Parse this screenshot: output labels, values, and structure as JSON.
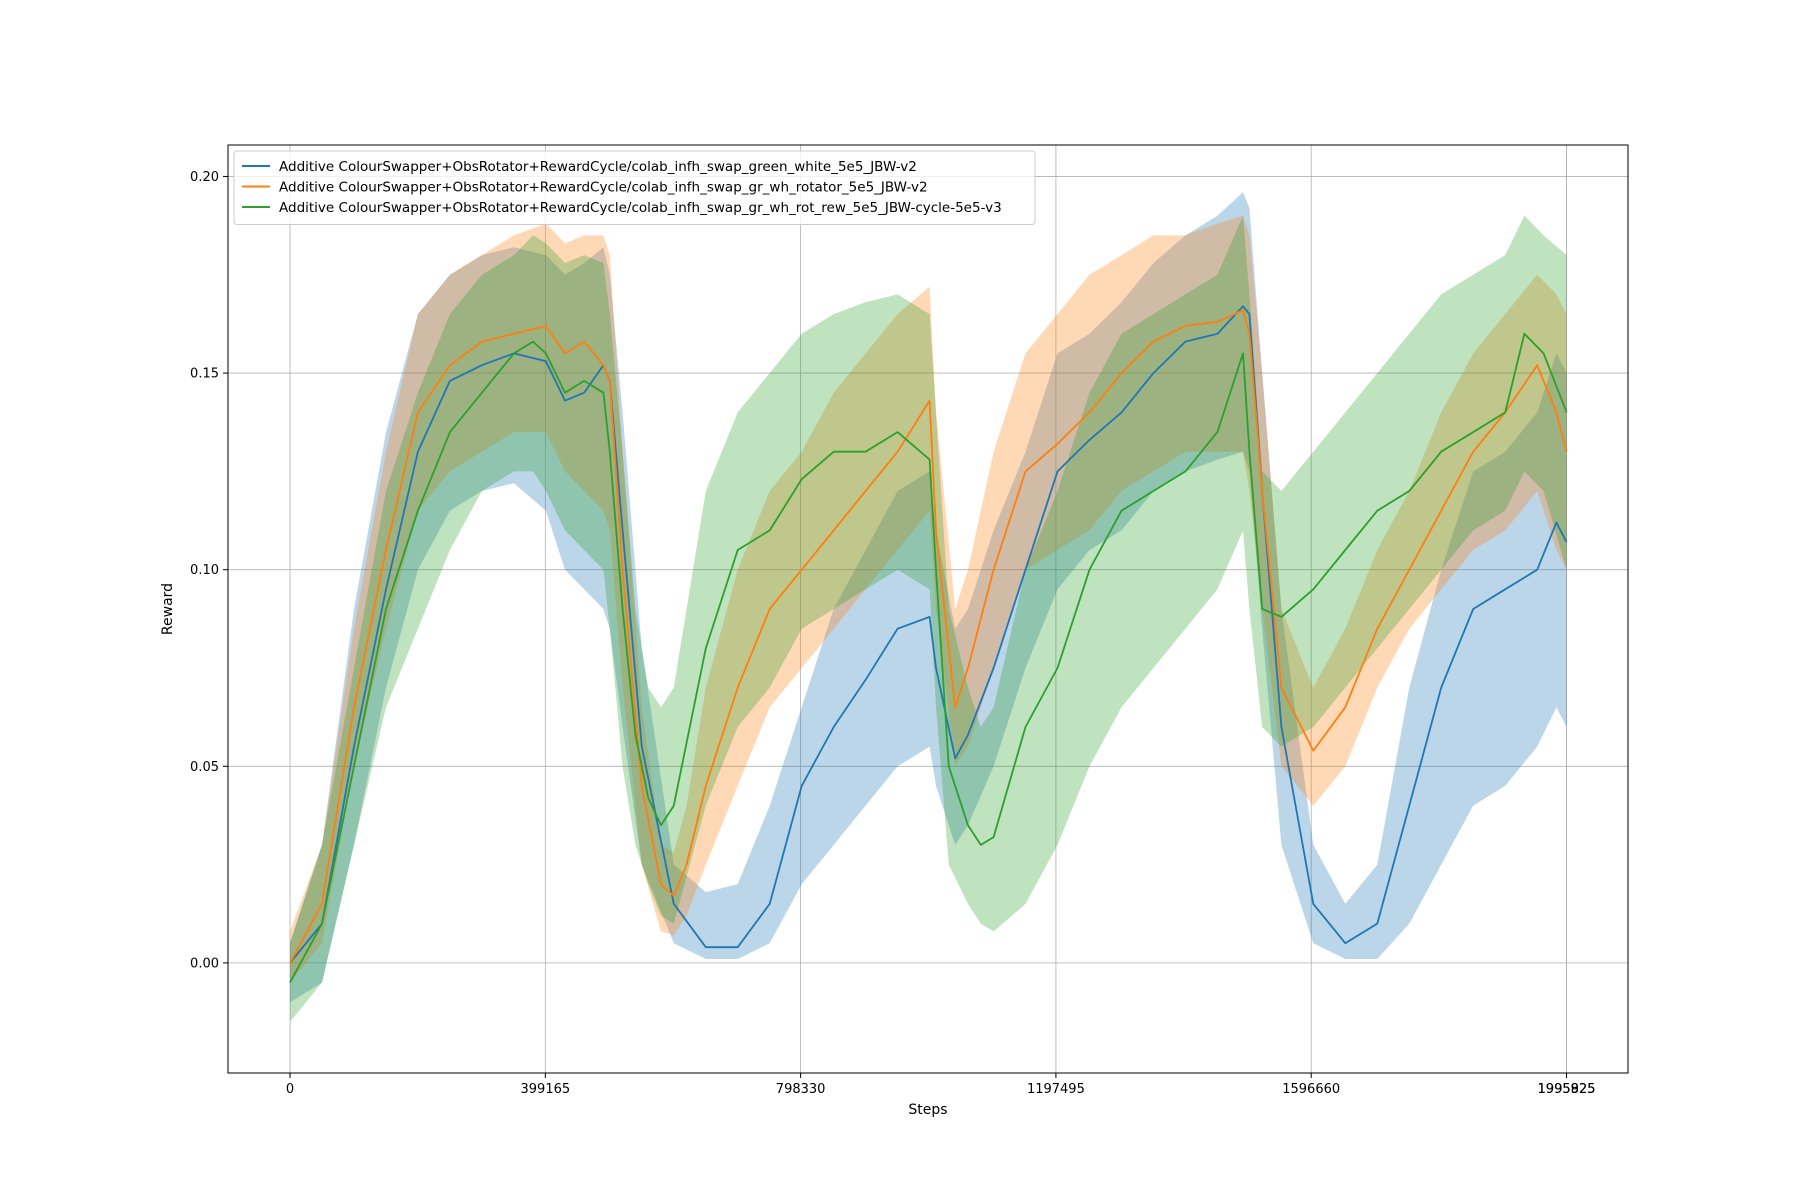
{
  "chart_data": {
    "type": "line",
    "xlabel": "Steps",
    "ylabel": "Reward",
    "grid": true,
    "legend_position": "top-left",
    "xlim": [
      -97000,
      2092000
    ],
    "ylim": [
      -0.028,
      0.208
    ],
    "x_ticks": [
      0,
      399165,
      798330,
      1197495,
      1596660,
      1995825,
      1995925
    ],
    "x_tick_labels": [
      "0",
      "399165",
      "798330",
      "1197495",
      "1596660",
      "1995825",
      "1995925"
    ],
    "y_ticks": [
      0.0,
      0.05,
      0.1,
      0.15,
      0.2
    ],
    "y_tick_labels": [
      "0.00",
      "0.05",
      "0.10",
      "0.15",
      "0.20"
    ],
    "series": [
      {
        "name": "Additive ColourSwapper+ObsRotator+RewardCycle/colab_infh_swap_green_white_5e5_JBW-v2",
        "color": "#1f77b4",
        "x": [
          0,
          50000,
          100000,
          150000,
          200000,
          250000,
          300000,
          350000,
          400000,
          430000,
          460000,
          490000,
          500000,
          520000,
          550000,
          600000,
          650000,
          700000,
          750000,
          800000,
          850000,
          900000,
          950000,
          1000000,
          1010000,
          1040000,
          1060000,
          1100000,
          1150000,
          1200000,
          1250000,
          1300000,
          1350000,
          1400000,
          1450000,
          1490000,
          1500000,
          1520000,
          1550000,
          1600000,
          1650000,
          1700000,
          1750000,
          1800000,
          1850000,
          1900000,
          1950000,
          1980000,
          1996000
        ],
        "mean": [
          0.0,
          0.01,
          0.055,
          0.095,
          0.13,
          0.148,
          0.152,
          0.155,
          0.153,
          0.143,
          0.145,
          0.152,
          0.148,
          0.11,
          0.055,
          0.015,
          0.004,
          0.004,
          0.015,
          0.045,
          0.06,
          0.072,
          0.085,
          0.088,
          0.075,
          0.052,
          0.058,
          0.075,
          0.1,
          0.125,
          0.133,
          0.14,
          0.15,
          0.158,
          0.16,
          0.167,
          0.165,
          0.12,
          0.06,
          0.015,
          0.005,
          0.01,
          0.04,
          0.07,
          0.09,
          0.095,
          0.1,
          0.112,
          0.107
        ],
        "lower": [
          -0.01,
          -0.005,
          0.03,
          0.07,
          0.1,
          0.115,
          0.12,
          0.122,
          0.115,
          0.1,
          0.095,
          0.09,
          0.085,
          0.06,
          0.025,
          0.005,
          0.001,
          0.001,
          0.005,
          0.02,
          0.03,
          0.04,
          0.05,
          0.055,
          0.045,
          0.03,
          0.035,
          0.05,
          0.075,
          0.095,
          0.105,
          0.11,
          0.12,
          0.125,
          0.128,
          0.13,
          0.125,
          0.085,
          0.03,
          0.005,
          0.001,
          0.001,
          0.01,
          0.025,
          0.04,
          0.045,
          0.055,
          0.065,
          0.06
        ],
        "upper": [
          0.005,
          0.03,
          0.09,
          0.135,
          0.165,
          0.175,
          0.18,
          0.182,
          0.18,
          0.175,
          0.178,
          0.182,
          0.175,
          0.14,
          0.08,
          0.025,
          0.018,
          0.02,
          0.04,
          0.065,
          0.09,
          0.105,
          0.12,
          0.125,
          0.11,
          0.085,
          0.09,
          0.11,
          0.13,
          0.155,
          0.16,
          0.168,
          0.178,
          0.185,
          0.19,
          0.196,
          0.192,
          0.15,
          0.09,
          0.03,
          0.015,
          0.025,
          0.07,
          0.1,
          0.125,
          0.13,
          0.14,
          0.155,
          0.15
        ]
      },
      {
        "name": "Additive ColourSwapper+ObsRotator+RewardCycle/colab_infh_swap_gr_wh_rotator_5e5_JBW-v2",
        "color": "#ff7f0e",
        "x": [
          0,
          50000,
          100000,
          150000,
          200000,
          250000,
          300000,
          350000,
          400000,
          430000,
          460000,
          490000,
          500000,
          520000,
          550000,
          580000,
          600000,
          620000,
          650000,
          700000,
          750000,
          800000,
          850000,
          900000,
          950000,
          1000000,
          1010000,
          1040000,
          1060000,
          1100000,
          1150000,
          1200000,
          1250000,
          1300000,
          1350000,
          1400000,
          1450000,
          1490000,
          1500000,
          1520000,
          1550000,
          1600000,
          1650000,
          1700000,
          1750000,
          1800000,
          1850000,
          1900000,
          1950000,
          1980000,
          1996000
        ],
        "mean": [
          0.0,
          0.015,
          0.065,
          0.105,
          0.14,
          0.152,
          0.158,
          0.16,
          0.162,
          0.155,
          0.158,
          0.152,
          0.148,
          0.1,
          0.045,
          0.02,
          0.017,
          0.025,
          0.045,
          0.07,
          0.09,
          0.1,
          0.11,
          0.12,
          0.13,
          0.143,
          0.11,
          0.065,
          0.075,
          0.1,
          0.125,
          0.132,
          0.14,
          0.15,
          0.158,
          0.162,
          0.163,
          0.166,
          0.16,
          0.12,
          0.07,
          0.054,
          0.065,
          0.085,
          0.1,
          0.115,
          0.13,
          0.14,
          0.152,
          0.14,
          0.13
        ],
        "lower": [
          -0.005,
          0.005,
          0.05,
          0.085,
          0.115,
          0.125,
          0.13,
          0.135,
          0.135,
          0.125,
          0.12,
          0.115,
          0.11,
          0.07,
          0.025,
          0.008,
          0.007,
          0.012,
          0.025,
          0.045,
          0.065,
          0.075,
          0.085,
          0.095,
          0.105,
          0.115,
          0.09,
          0.05,
          0.055,
          0.075,
          0.1,
          0.105,
          0.11,
          0.12,
          0.125,
          0.13,
          0.13,
          0.13,
          0.12,
          0.09,
          0.05,
          0.04,
          0.05,
          0.07,
          0.085,
          0.095,
          0.105,
          0.11,
          0.12,
          0.105,
          0.1
        ],
        "upper": [
          0.008,
          0.03,
          0.085,
          0.13,
          0.165,
          0.175,
          0.18,
          0.185,
          0.188,
          0.183,
          0.185,
          0.185,
          0.18,
          0.13,
          0.065,
          0.03,
          0.028,
          0.04,
          0.07,
          0.1,
          0.12,
          0.13,
          0.145,
          0.155,
          0.165,
          0.172,
          0.14,
          0.09,
          0.1,
          0.13,
          0.155,
          0.165,
          0.175,
          0.18,
          0.185,
          0.185,
          0.188,
          0.19,
          0.185,
          0.15,
          0.09,
          0.07,
          0.085,
          0.105,
          0.12,
          0.14,
          0.155,
          0.165,
          0.175,
          0.17,
          0.165
        ]
      },
      {
        "name": "Additive ColourSwapper+ObsRotator+RewardCycle/colab_infh_swap_gr_wh_rot_rew_5e5_JBW-cycle-5e5-v3",
        "color": "#2ca02c",
        "x": [
          0,
          50000,
          100000,
          150000,
          200000,
          250000,
          300000,
          350000,
          380000,
          400000,
          430000,
          460000,
          490000,
          500000,
          520000,
          540000,
          560000,
          580000,
          600000,
          650000,
          700000,
          750000,
          800000,
          850000,
          900000,
          950000,
          1000000,
          1010000,
          1030000,
          1060000,
          1080000,
          1100000,
          1150000,
          1200000,
          1250000,
          1300000,
          1350000,
          1400000,
          1450000,
          1490000,
          1500000,
          1520000,
          1550000,
          1600000,
          1650000,
          1700000,
          1750000,
          1800000,
          1850000,
          1900000,
          1930000,
          1960000,
          1996000
        ],
        "mean": [
          -0.005,
          0.01,
          0.05,
          0.09,
          0.115,
          0.135,
          0.145,
          0.155,
          0.158,
          0.155,
          0.145,
          0.148,
          0.145,
          0.13,
          0.09,
          0.058,
          0.042,
          0.035,
          0.04,
          0.08,
          0.105,
          0.11,
          0.123,
          0.13,
          0.13,
          0.135,
          0.128,
          0.1,
          0.05,
          0.035,
          0.03,
          0.032,
          0.06,
          0.075,
          0.1,
          0.115,
          0.12,
          0.125,
          0.135,
          0.155,
          0.13,
          0.09,
          0.088,
          0.095,
          0.105,
          0.115,
          0.12,
          0.13,
          0.135,
          0.14,
          0.16,
          0.155,
          0.14
        ],
        "lower": [
          -0.015,
          -0.005,
          0.03,
          0.065,
          0.085,
          0.105,
          0.12,
          0.125,
          0.125,
          0.12,
          0.11,
          0.105,
          0.1,
          0.085,
          0.05,
          0.03,
          0.02,
          0.012,
          0.01,
          0.04,
          0.06,
          0.07,
          0.085,
          0.09,
          0.095,
          0.1,
          0.095,
          0.065,
          0.025,
          0.015,
          0.01,
          0.008,
          0.015,
          0.03,
          0.05,
          0.065,
          0.075,
          0.085,
          0.095,
          0.11,
          0.09,
          0.06,
          0.055,
          0.06,
          0.07,
          0.08,
          0.09,
          0.1,
          0.11,
          0.115,
          0.125,
          0.12,
          0.1
        ],
        "upper": [
          0.005,
          0.03,
          0.075,
          0.12,
          0.145,
          0.165,
          0.175,
          0.18,
          0.185,
          0.183,
          0.178,
          0.18,
          0.178,
          0.165,
          0.13,
          0.09,
          0.07,
          0.065,
          0.07,
          0.12,
          0.14,
          0.15,
          0.16,
          0.165,
          0.168,
          0.17,
          0.165,
          0.14,
          0.09,
          0.07,
          0.06,
          0.065,
          0.1,
          0.12,
          0.145,
          0.16,
          0.165,
          0.17,
          0.175,
          0.19,
          0.17,
          0.125,
          0.12,
          0.13,
          0.14,
          0.15,
          0.16,
          0.17,
          0.175,
          0.18,
          0.19,
          0.185,
          0.18
        ]
      }
    ]
  }
}
